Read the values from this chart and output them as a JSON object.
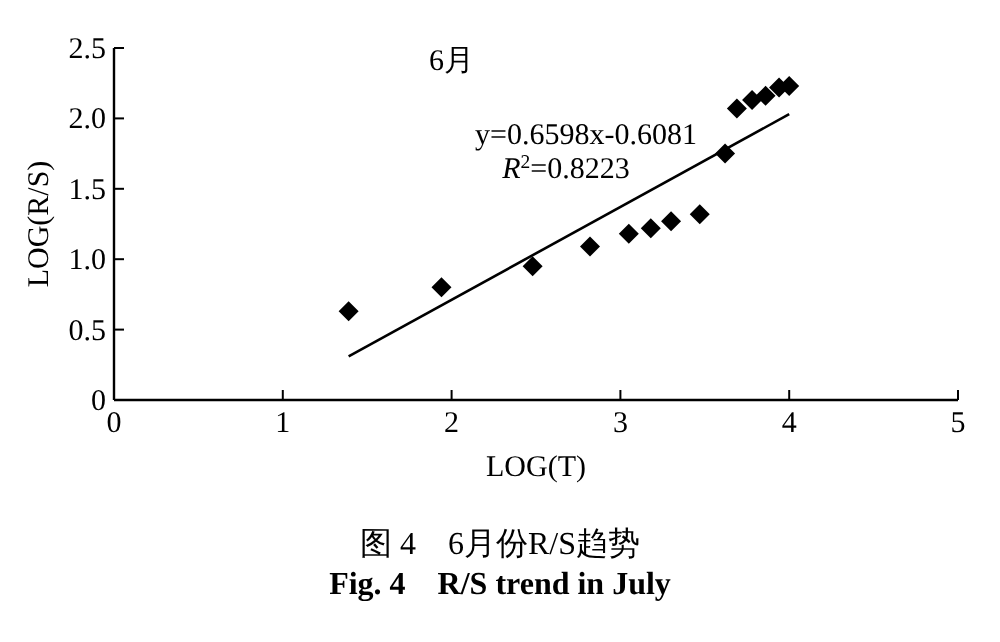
{
  "chart_data": {
    "type": "scatter",
    "title": "6月",
    "xlabel": "LOG(T)",
    "ylabel": "LOG(R/S)",
    "annotations": [
      "y=0.6598x-0.6081",
      "*R*$^{2}$=0.8223",
      "图 4　6月份R/S趋势",
      "Fig. 4　R/S trend in July"
    ],
    "series": [
      {
        "color": "#000000",
        "marker": "diamond",
        "x": [
          1.39,
          1.94,
          2.48,
          2.82,
          3.05,
          3.18,
          3.3,
          3.47,
          3.62,
          3.69,
          3.78,
          3.86,
          3.94,
          4.0
        ],
        "values": [
          0.63,
          0.8,
          0.95,
          1.09,
          1.18,
          1.22,
          1.27,
          1.32,
          1.75,
          2.07,
          2.13,
          2.16,
          2.22,
          2.23
        ]
      },
      {
        "type": "line",
        "color": "#000000",
        "line_style": "solid",
        "x": [
          1.39,
          4.0
        ],
        "values": [
          0.31,
          2.03
        ]
      }
    ],
    "xlim": [
      0,
      5
    ],
    "ylim": [
      0,
      2.5
    ],
    "xticks": [
      0,
      1,
      2,
      3,
      4,
      5
    ],
    "yticks": [
      0,
      0.5,
      {
        "value": 1,
        "label": "1.0"
      },
      1.5,
      {
        "value": 2,
        "label": "2.0"
      },
      2.5
    ],
    "grid": false
  }
}
